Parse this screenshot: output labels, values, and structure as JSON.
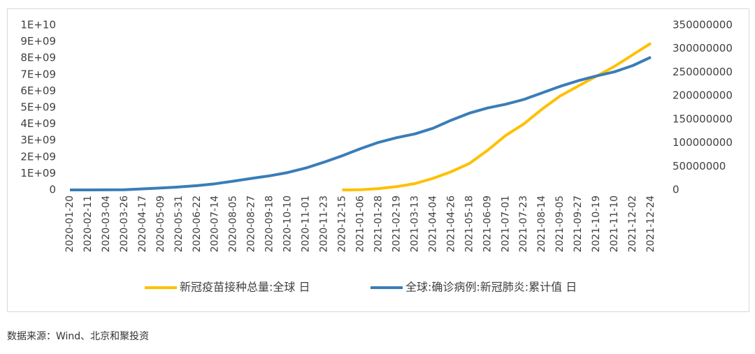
{
  "chart_data": {
    "type": "line",
    "categories": [
      "2020-01-20",
      "2020-02-11",
      "2020-03-04",
      "2020-03-26",
      "2020-04-17",
      "2020-05-09",
      "2020-05-31",
      "2020-06-22",
      "2020-07-14",
      "2020-08-05",
      "2020-08-27",
      "2020-09-18",
      "2020-10-10",
      "2020-11-01",
      "2020-11-23",
      "2020-12-15",
      "2021-01-06",
      "2021-01-28",
      "2021-02-19",
      "2021-03-13",
      "2021-04-04",
      "2021-04-26",
      "2021-05-18",
      "2021-06-09",
      "2021-07-01",
      "2021-07-23",
      "2021-08-14",
      "2021-09-05",
      "2021-09-27",
      "2021-10-19",
      "2021-11-10",
      "2021-12-02",
      "2021-12-24"
    ],
    "series": [
      {
        "name": "新冠疫苗接种总量:全球 日",
        "color": "#ffc000",
        "values": [
          null,
          null,
          null,
          null,
          null,
          null,
          null,
          null,
          null,
          null,
          null,
          null,
          null,
          null,
          null,
          1000000,
          10000000,
          80000000,
          200000000,
          380000000,
          700000000,
          1100000000,
          1600000000,
          2400000000,
          3300000000,
          4000000000,
          4900000000,
          5700000000,
          6300000000,
          6900000000,
          7500000000,
          8200000000,
          8900000000
        ]
      },
      {
        "name": "全球:确诊病例:新冠肺炎:累计值 日",
        "color": "#3a7db8",
        "axis": "y2",
        "values": [
          0,
          40000,
          90000,
          500000,
          2200000,
          4000000,
          6200000,
          9000000,
          13000000,
          18500000,
          24500000,
          30000000,
          37000000,
          46500000,
          59000000,
          72500000,
          87500000,
          101000000,
          111000000,
          119000000,
          131000000,
          148000000,
          163000000,
          174000000,
          182000000,
          192000000,
          206000000,
          220000000,
          232000000,
          242000000,
          251000000,
          264000000,
          282000000
        ]
      }
    ],
    "ylim": [
      0,
      10000000000
    ],
    "yticks": [
      0,
      {
        "value": 1000000000,
        "label": "1E+09"
      },
      {
        "value": 2000000000,
        "label": "2E+09"
      },
      {
        "value": 3000000000,
        "label": "3E+09"
      },
      {
        "value": 4000000000,
        "label": "4E+09"
      },
      {
        "value": 5000000000,
        "label": "5E+09"
      },
      {
        "value": 6000000000,
        "label": "6E+09"
      },
      {
        "value": 7000000000,
        "label": "7E+09"
      },
      {
        "value": 8000000000,
        "label": "8E+09"
      },
      {
        "value": 9000000000,
        "label": "9E+09"
      },
      {
        "value": 10000000000,
        "label": "1E+10"
      }
    ],
    "y2lim": [
      0,
      350000000
    ],
    "y2ticks": [
      0,
      50000000,
      100000000,
      150000000,
      200000000,
      250000000,
      300000000,
      350000000
    ],
    "legend": "bottom",
    "source": "数据来源：Wind、北京和聚投资"
  }
}
